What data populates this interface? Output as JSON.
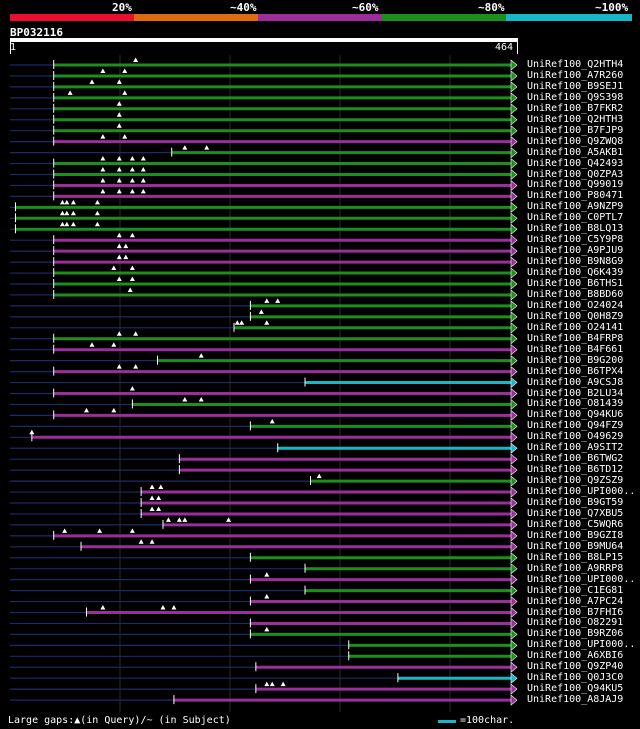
{
  "legend": {
    "ticks": [
      "20%",
      "~40%",
      "~60%",
      "~80%",
      "~100%"
    ],
    "colors": [
      "#e8102e",
      "#e06a12",
      "#9a2e9a",
      "#1d8f1d",
      "#17b7c7"
    ]
  },
  "query": {
    "id": "BP032116",
    "start": "1",
    "end": "464",
    "length": 464
  },
  "footer": {
    "left": "Large gaps:▲(in Query)/~ (in Subject)",
    "right": "=100char."
  },
  "hits": [
    {
      "label": "UniRef100_Q2HTH4",
      "start": 40,
      "end": 464,
      "color": "#1d8f1d",
      "marks": [
        115
      ]
    },
    {
      "label": "UniRef100_A7R260",
      "start": 40,
      "end": 464,
      "color": "#1d8f1d",
      "marks": [
        85,
        105
      ]
    },
    {
      "label": "UniRef100_B9SEJ1",
      "start": 40,
      "end": 464,
      "color": "#1d8f1d",
      "marks": [
        75,
        100
      ]
    },
    {
      "label": "UniRef100_Q9S398",
      "start": 40,
      "end": 464,
      "color": "#1d8f1d",
      "marks": [
        55,
        105
      ]
    },
    {
      "label": "UniRef100_B7FKR2",
      "start": 40,
      "end": 464,
      "color": "#1d8f1d",
      "marks": [
        100
      ]
    },
    {
      "label": "UniRef100_Q2HTH3",
      "start": 40,
      "end": 464,
      "color": "#1d8f1d",
      "marks": [
        100
      ]
    },
    {
      "label": "UniRef100_B7FJP9",
      "start": 40,
      "end": 464,
      "color": "#1d8f1d",
      "marks": [
        100
      ]
    },
    {
      "label": "UniRef100_Q9ZWQ8",
      "start": 40,
      "end": 464,
      "color": "#9a2e9a",
      "marks": [
        85,
        105
      ]
    },
    {
      "label": "UniRef100_A5AKB1",
      "start": 148,
      "end": 464,
      "color": "#1d8f1d",
      "marks": [
        160,
        180
      ]
    },
    {
      "label": "UniRef100_Q42493",
      "start": 40,
      "end": 464,
      "color": "#1d8f1d",
      "marks": [
        85,
        100,
        112,
        122
      ]
    },
    {
      "label": "UniRef100_Q0ZPA3",
      "start": 40,
      "end": 464,
      "color": "#1d8f1d",
      "marks": [
        85,
        100,
        112,
        122
      ]
    },
    {
      "label": "UniRef100_Q99019",
      "start": 40,
      "end": 464,
      "color": "#9a2e9a",
      "marks": [
        85,
        100,
        112,
        122
      ]
    },
    {
      "label": "UniRef100_P80471",
      "start": 40,
      "end": 464,
      "color": "#9a2e9a",
      "marks": [
        85,
        100,
        112,
        122
      ]
    },
    {
      "label": "UniRef100_A9NZP9",
      "start": 5,
      "end": 464,
      "color": "#1d8f1d",
      "marks": [
        48,
        52,
        58,
        80
      ]
    },
    {
      "label": "UniRef100_C0PTL7",
      "start": 5,
      "end": 464,
      "color": "#1d8f1d",
      "marks": [
        48,
        52,
        58,
        80
      ]
    },
    {
      "label": "UniRef100_B8LQ13",
      "start": 5,
      "end": 464,
      "color": "#1d8f1d",
      "marks": [
        48,
        52,
        58,
        80
      ]
    },
    {
      "label": "UniRef100_C5Y9P8",
      "start": 40,
      "end": 464,
      "color": "#9a2e9a",
      "marks": [
        100,
        112
      ]
    },
    {
      "label": "UniRef100_A9PJU9",
      "start": 40,
      "end": 464,
      "color": "#9a2e9a",
      "marks": [
        100,
        106
      ]
    },
    {
      "label": "UniRef100_B9N8G9",
      "start": 40,
      "end": 464,
      "color": "#9a2e9a",
      "marks": [
        100,
        106
      ]
    },
    {
      "label": "UniRef100_Q6K439",
      "start": 40,
      "end": 464,
      "color": "#1d8f1d",
      "marks": [
        95,
        112
      ]
    },
    {
      "label": "UniRef100_B6THS1",
      "start": 40,
      "end": 464,
      "color": "#1d8f1d",
      "marks": [
        100,
        112
      ]
    },
    {
      "label": "UniRef100_B8BD60",
      "start": 40,
      "end": 464,
      "color": "#1d8f1d",
      "marks": [
        110
      ]
    },
    {
      "label": "UniRef100_O24024",
      "start": 220,
      "end": 464,
      "color": "#1d8f1d",
      "marks": [
        235,
        245
      ]
    },
    {
      "label": "UniRef100_Q0H8Z9",
      "start": 220,
      "end": 464,
      "color": "#1d8f1d",
      "marks": [
        230
      ]
    },
    {
      "label": "UniRef100_O24141",
      "start": 205,
      "end": 464,
      "color": "#1d8f1d",
      "marks": [
        208,
        212,
        235
      ]
    },
    {
      "label": "UniRef100_B4FRP8",
      "start": 40,
      "end": 464,
      "color": "#1d8f1d",
      "marks": [
        100,
        115
      ]
    },
    {
      "label": "UniRef100_B4F661",
      "start": 40,
      "end": 464,
      "color": "#9a2e9a",
      "marks": [
        75,
        95
      ]
    },
    {
      "label": "UniRef100_B9G200",
      "start": 135,
      "end": 464,
      "color": "#1d8f1d",
      "marks": [
        175
      ]
    },
    {
      "label": "UniRef100_B6TPX4",
      "start": 40,
      "end": 464,
      "color": "#9a2e9a",
      "marks": [
        100,
        115
      ]
    },
    {
      "label": "UniRef100_A9CSJ8",
      "start": 270,
      "end": 464,
      "color": "#17b7c7",
      "marks": []
    },
    {
      "label": "UniRef100_B2LU34",
      "start": 40,
      "end": 464,
      "color": "#9a2e9a",
      "marks": [
        112
      ]
    },
    {
      "label": "UniRef100_O81439",
      "start": 112,
      "end": 464,
      "color": "#1d8f1d",
      "marks": [
        160,
        175
      ]
    },
    {
      "label": "UniRef100_Q94KU6",
      "start": 40,
      "end": 464,
      "color": "#9a2e9a",
      "marks": [
        70,
        95
      ]
    },
    {
      "label": "UniRef100_Q94FZ9",
      "start": 220,
      "end": 464,
      "color": "#1d8f1d",
      "marks": [
        240
      ]
    },
    {
      "label": "UniRef100_O49629",
      "start": 20,
      "end": 464,
      "color": "#9a2e9a",
      "marks": [
        20
      ]
    },
    {
      "label": "UniRef100_A9SIT2",
      "start": 245,
      "end": 464,
      "color": "#17b7c7",
      "marks": []
    },
    {
      "label": "UniRef100_B6TWG2",
      "start": 155,
      "end": 464,
      "color": "#9a2e9a",
      "marks": []
    },
    {
      "label": "UniRef100_B6TD12",
      "start": 155,
      "end": 464,
      "color": "#9a2e9a",
      "marks": []
    },
    {
      "label": "UniRef100_Q9ZSZ9",
      "start": 275,
      "end": 464,
      "color": "#1d8f1d",
      "marks": [
        283
      ]
    },
    {
      "label": "UniRef100_UPI000..",
      "start": 120,
      "end": 464,
      "color": "#9a2e9a",
      "marks": [
        130,
        138
      ]
    },
    {
      "label": "UniRef100_B9GT59",
      "start": 120,
      "end": 464,
      "color": "#9a2e9a",
      "marks": [
        130,
        136
      ]
    },
    {
      "label": "UniRef100_Q7XBU5",
      "start": 120,
      "end": 464,
      "color": "#9a2e9a",
      "marks": [
        130,
        136
      ]
    },
    {
      "label": "UniRef100_C5WQR6",
      "start": 140,
      "end": 464,
      "color": "#9a2e9a",
      "marks": [
        145,
        155,
        160,
        200
      ]
    },
    {
      "label": "UniRef100_B9GZI8",
      "start": 40,
      "end": 464,
      "color": "#9a2e9a",
      "marks": [
        50,
        82,
        112
      ]
    },
    {
      "label": "UniRef100_B9MU64",
      "start": 65,
      "end": 464,
      "color": "#9a2e9a",
      "marks": [
        120,
        130
      ]
    },
    {
      "label": "UniRef100_B8LP15",
      "start": 220,
      "end": 464,
      "color": "#1d8f1d",
      "marks": []
    },
    {
      "label": "UniRef100_A9RRP8",
      "start": 270,
      "end": 464,
      "color": "#1d8f1d",
      "marks": []
    },
    {
      "label": "UniRef100_UPI000..",
      "start": 220,
      "end": 464,
      "color": "#9a2e9a",
      "marks": [
        235
      ]
    },
    {
      "label": "UniRef100_C1EG81",
      "start": 270,
      "end": 464,
      "color": "#1d8f1d",
      "marks": []
    },
    {
      "label": "UniRef100_A7PC24",
      "start": 220,
      "end": 464,
      "color": "#9a2e9a",
      "marks": [
        235
      ]
    },
    {
      "label": "UniRef100_B7FHI6",
      "start": 70,
      "end": 464,
      "color": "#9a2e9a",
      "marks": [
        85,
        140,
        150
      ]
    },
    {
      "label": "UniRef100_O82291",
      "start": 220,
      "end": 464,
      "color": "#9a2e9a",
      "marks": []
    },
    {
      "label": "UniRef100_B9RZ06",
      "start": 220,
      "end": 464,
      "color": "#1d8f1d",
      "marks": [
        235
      ]
    },
    {
      "label": "UniRef100_UPI000..",
      "start": 310,
      "end": 464,
      "color": "#1d8f1d",
      "marks": []
    },
    {
      "label": "UniRef100_A6XBI6",
      "start": 310,
      "end": 464,
      "color": "#1d8f1d",
      "marks": []
    },
    {
      "label": "UniRef100_Q9ZP40",
      "start": 225,
      "end": 464,
      "color": "#9a2e9a",
      "marks": []
    },
    {
      "label": "UniRef100_Q0J3C0",
      "start": 355,
      "end": 464,
      "color": "#17b7c7",
      "marks": []
    },
    {
      "label": "UniRef100_Q94KU5",
      "start": 225,
      "end": 464,
      "color": "#9a2e9a",
      "marks": [
        235,
        240,
        250
      ]
    },
    {
      "label": "UniRef100_A8JAJ9",
      "start": 150,
      "end": 464,
      "color": "#9a2e9a",
      "marks": []
    }
  ]
}
